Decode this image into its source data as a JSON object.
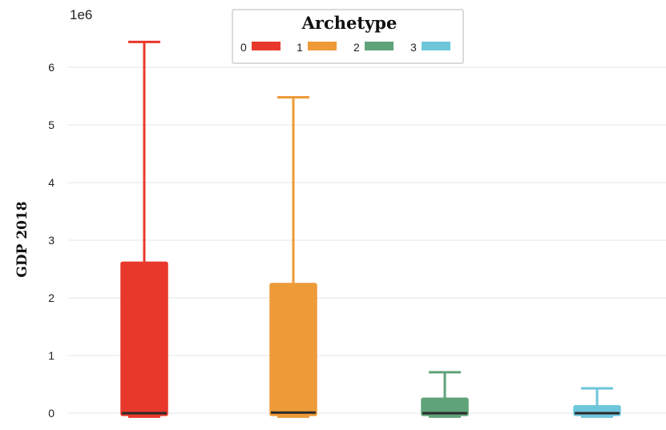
{
  "chart_data": {
    "type": "box",
    "ylabel": "GDP 2018",
    "y_multiplier_label": "1e6",
    "ylim": [
      -0.15,
      6.95
    ],
    "yticks": [
      0,
      1,
      2,
      3,
      4,
      5,
      6
    ],
    "grid": true,
    "legend": {
      "title": "Archetype",
      "placement": "top-center",
      "entries": [
        "0",
        "1",
        "2",
        "3"
      ]
    },
    "series": [
      {
        "name": "0",
        "color": "#e8382c",
        "whisker_low": -0.06,
        "q1": -0.04,
        "median": 0.0,
        "q3": 2.62,
        "whisker_high": 6.44
      },
      {
        "name": "1",
        "color": "#ee9a38",
        "whisker_low": -0.06,
        "q1": -0.04,
        "median": 0.01,
        "q3": 2.25,
        "whisker_high": 5.48
      },
      {
        "name": "2",
        "color": "#5fa37a",
        "whisker_low": -0.06,
        "q1": -0.04,
        "median": 0.0,
        "q3": 0.26,
        "whisker_high": 0.71
      },
      {
        "name": "3",
        "color": "#6ec6db",
        "whisker_low": -0.06,
        "q1": -0.04,
        "median": 0.0,
        "q3": 0.13,
        "whisker_high": 0.43
      }
    ]
  }
}
